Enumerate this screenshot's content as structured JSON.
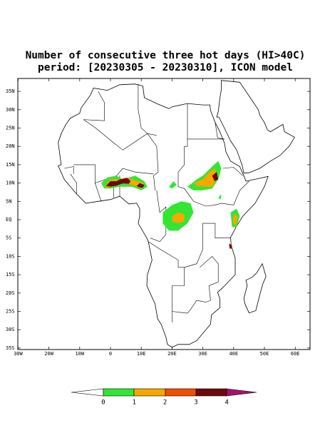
{
  "title": [
    "Number of consecutive three hot days (HI>40C)",
    "period: [20230305 - 20230310], ICON model"
  ],
  "map": {
    "lat_labels": [
      "35N",
      "30N",
      "25N",
      "20N",
      "15N",
      "10N",
      "5N",
      "EQ",
      "5S",
      "10S",
      "15S",
      "20S",
      "25S",
      "30S",
      "35S"
    ],
    "lon_labels": [
      "30W",
      "20W",
      "10W",
      "0",
      "10E",
      "20E",
      "30E",
      "40E",
      "50E",
      "60E"
    ]
  },
  "legend": {
    "labels": [
      "0",
      "1",
      "2",
      "3",
      "4"
    ]
  }
}
